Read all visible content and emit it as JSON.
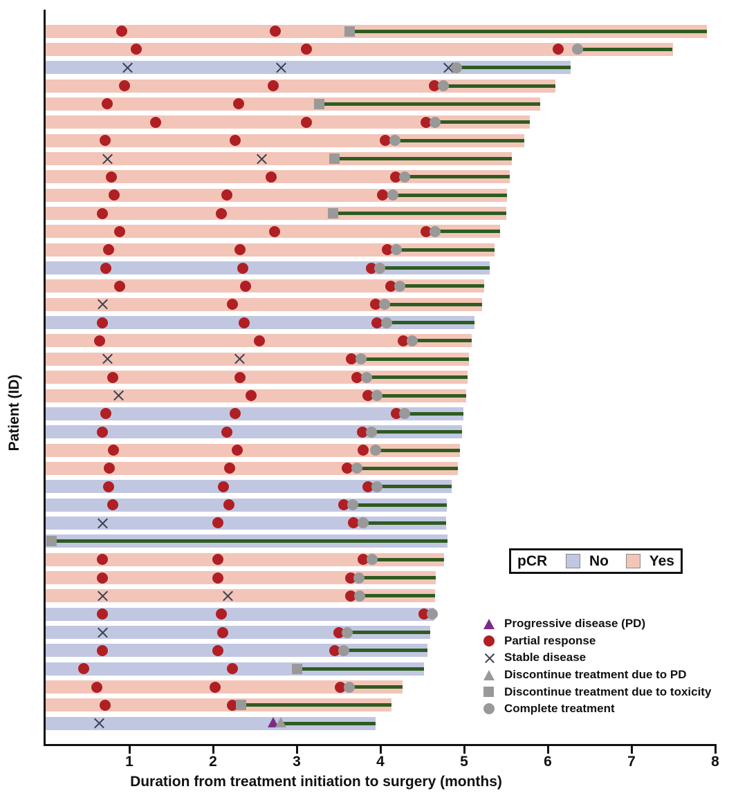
{
  "chart_data": {
    "type": "bar",
    "variant": "swimmer-plot",
    "xlabel": "Duration from treatment initiation to surgery (months)",
    "ylabel": "Patient (ID)",
    "xlim": [
      0,
      8
    ],
    "x_ticks": [
      1,
      2,
      3,
      4,
      5,
      6,
      7,
      8
    ],
    "grid": false,
    "colors": {
      "pcr_yes": "#f2c5b8",
      "pcr_no": "#c1c7e1",
      "treatment_line": "#2e5c20",
      "partial_response": "#b01f24",
      "gray_marker": "#999999",
      "progressive_disease": "#7d2b88",
      "stable_x": "#3c4152",
      "axis": "#111111"
    },
    "pcr_legend": {
      "title": "pCR",
      "no_label": "No",
      "yes_label": "Yes"
    },
    "marker_legend": [
      {
        "type": "pd",
        "label": "Progressive disease (PD)"
      },
      {
        "type": "pr",
        "label": "Partial response"
      },
      {
        "type": "sd",
        "label": "Stable disease"
      },
      {
        "type": "disc_pd",
        "label": "Discontinue treatment due to PD"
      },
      {
        "type": "tox",
        "label": "Discontinue treatment due to toxicity"
      },
      {
        "type": "comp",
        "label": "Complete treatment"
      }
    ],
    "patients": [
      {
        "pcr": "yes",
        "end": 7.91,
        "markers": [
          {
            "t": 0.92,
            "type": "pr"
          },
          {
            "t": 2.75,
            "type": "pr"
          },
          {
            "t": 3.64,
            "type": "tox"
          }
        ]
      },
      {
        "pcr": "yes",
        "end": 7.5,
        "markers": [
          {
            "t": 1.09,
            "type": "pr"
          },
          {
            "t": 3.12,
            "type": "pr"
          },
          {
            "t": 6.13,
            "type": "pr"
          },
          {
            "t": 6.36,
            "type": "comp"
          }
        ]
      },
      {
        "pcr": "no",
        "end": 6.28,
        "markers": [
          {
            "t": 0.99,
            "type": "sd"
          },
          {
            "t": 2.82,
            "type": "sd"
          },
          {
            "t": 4.82,
            "type": "sd"
          },
          {
            "t": 4.92,
            "type": "comp"
          }
        ]
      },
      {
        "pcr": "yes",
        "end": 6.1,
        "markers": [
          {
            "t": 0.95,
            "type": "pr"
          },
          {
            "t": 2.73,
            "type": "pr"
          },
          {
            "t": 4.65,
            "type": "pr"
          },
          {
            "t": 4.76,
            "type": "comp"
          }
        ]
      },
      {
        "pcr": "yes",
        "end": 5.92,
        "markers": [
          {
            "t": 0.74,
            "type": "pr"
          },
          {
            "t": 2.31,
            "type": "pr"
          },
          {
            "t": 3.28,
            "type": "tox"
          }
        ]
      },
      {
        "pcr": "yes",
        "end": 5.79,
        "markers": [
          {
            "t": 1.32,
            "type": "pr"
          },
          {
            "t": 3.12,
            "type": "pr"
          },
          {
            "t": 4.55,
            "type": "pr"
          },
          {
            "t": 4.66,
            "type": "comp"
          }
        ]
      },
      {
        "pcr": "yes",
        "end": 5.73,
        "markers": [
          {
            "t": 0.72,
            "type": "pr"
          },
          {
            "t": 2.27,
            "type": "pr"
          },
          {
            "t": 4.07,
            "type": "pr"
          },
          {
            "t": 4.18,
            "type": "comp"
          }
        ]
      },
      {
        "pcr": "yes",
        "end": 5.58,
        "markers": [
          {
            "t": 0.75,
            "type": "sd"
          },
          {
            "t": 2.59,
            "type": "sd"
          },
          {
            "t": 3.46,
            "type": "tox"
          }
        ]
      },
      {
        "pcr": "yes",
        "end": 5.55,
        "markers": [
          {
            "t": 0.79,
            "type": "pr"
          },
          {
            "t": 2.7,
            "type": "pr"
          },
          {
            "t": 4.19,
            "type": "pr"
          },
          {
            "t": 4.3,
            "type": "comp"
          }
        ]
      },
      {
        "pcr": "yes",
        "end": 5.52,
        "markers": [
          {
            "t": 0.83,
            "type": "pr"
          },
          {
            "t": 2.17,
            "type": "pr"
          },
          {
            "t": 4.03,
            "type": "pr"
          },
          {
            "t": 4.16,
            "type": "comp"
          }
        ]
      },
      {
        "pcr": "yes",
        "end": 5.51,
        "markers": [
          {
            "t": 0.69,
            "type": "pr"
          },
          {
            "t": 2.11,
            "type": "pr"
          },
          {
            "t": 3.44,
            "type": "tox"
          }
        ]
      },
      {
        "pcr": "yes",
        "end": 5.44,
        "markers": [
          {
            "t": 0.89,
            "type": "pr"
          },
          {
            "t": 2.74,
            "type": "pr"
          },
          {
            "t": 4.55,
            "type": "pr"
          },
          {
            "t": 4.66,
            "type": "comp"
          }
        ]
      },
      {
        "pcr": "yes",
        "end": 5.37,
        "markers": [
          {
            "t": 0.76,
            "type": "pr"
          },
          {
            "t": 2.33,
            "type": "pr"
          },
          {
            "t": 4.09,
            "type": "pr"
          },
          {
            "t": 4.2,
            "type": "comp"
          }
        ]
      },
      {
        "pcr": "no",
        "end": 5.31,
        "markers": [
          {
            "t": 0.73,
            "type": "pr"
          },
          {
            "t": 2.36,
            "type": "pr"
          },
          {
            "t": 3.9,
            "type": "pr"
          },
          {
            "t": 4.0,
            "type": "comp"
          }
        ]
      },
      {
        "pcr": "yes",
        "end": 5.25,
        "markers": [
          {
            "t": 0.89,
            "type": "pr"
          },
          {
            "t": 2.4,
            "type": "pr"
          },
          {
            "t": 4.13,
            "type": "pr"
          },
          {
            "t": 4.24,
            "type": "comp"
          }
        ]
      },
      {
        "pcr": "yes",
        "end": 5.22,
        "markers": [
          {
            "t": 0.69,
            "type": "sd"
          },
          {
            "t": 2.24,
            "type": "pr"
          },
          {
            "t": 3.95,
            "type": "pr"
          },
          {
            "t": 4.06,
            "type": "comp"
          }
        ]
      },
      {
        "pcr": "no",
        "end": 5.13,
        "markers": [
          {
            "t": 0.69,
            "type": "pr"
          },
          {
            "t": 2.38,
            "type": "pr"
          },
          {
            "t": 3.97,
            "type": "pr"
          },
          {
            "t": 4.08,
            "type": "comp"
          }
        ]
      },
      {
        "pcr": "yes",
        "end": 5.1,
        "markers": [
          {
            "t": 0.65,
            "type": "pr"
          },
          {
            "t": 2.56,
            "type": "pr"
          },
          {
            "t": 4.28,
            "type": "pr"
          },
          {
            "t": 4.39,
            "type": "comp"
          }
        ]
      },
      {
        "pcr": "yes",
        "end": 5.07,
        "markers": [
          {
            "t": 0.75,
            "type": "sd"
          },
          {
            "t": 2.33,
            "type": "sd"
          },
          {
            "t": 3.66,
            "type": "pr"
          },
          {
            "t": 3.78,
            "type": "comp"
          }
        ]
      },
      {
        "pcr": "yes",
        "end": 5.05,
        "markers": [
          {
            "t": 0.81,
            "type": "pr"
          },
          {
            "t": 2.33,
            "type": "pr"
          },
          {
            "t": 3.73,
            "type": "pr"
          },
          {
            "t": 3.84,
            "type": "comp"
          }
        ]
      },
      {
        "pcr": "yes",
        "end": 5.03,
        "markers": [
          {
            "t": 0.88,
            "type": "sd"
          },
          {
            "t": 2.46,
            "type": "pr"
          },
          {
            "t": 3.86,
            "type": "pr"
          },
          {
            "t": 3.97,
            "type": "comp"
          }
        ]
      },
      {
        "pcr": "no",
        "end": 5.0,
        "markers": [
          {
            "t": 0.73,
            "type": "pr"
          },
          {
            "t": 2.27,
            "type": "pr"
          },
          {
            "t": 4.2,
            "type": "pr"
          },
          {
            "t": 4.3,
            "type": "comp"
          }
        ]
      },
      {
        "pcr": "no",
        "end": 4.98,
        "markers": [
          {
            "t": 0.69,
            "type": "pr"
          },
          {
            "t": 2.17,
            "type": "pr"
          },
          {
            "t": 3.79,
            "type": "pr"
          },
          {
            "t": 3.9,
            "type": "comp"
          }
        ]
      },
      {
        "pcr": "yes",
        "end": 4.96,
        "markers": [
          {
            "t": 0.82,
            "type": "pr"
          },
          {
            "t": 2.3,
            "type": "pr"
          },
          {
            "t": 3.8,
            "type": "pr"
          },
          {
            "t": 3.95,
            "type": "comp"
          }
        ]
      },
      {
        "pcr": "yes",
        "end": 4.93,
        "markers": [
          {
            "t": 0.77,
            "type": "pr"
          },
          {
            "t": 2.21,
            "type": "pr"
          },
          {
            "t": 3.61,
            "type": "pr"
          },
          {
            "t": 3.73,
            "type": "comp"
          }
        ]
      },
      {
        "pcr": "no",
        "end": 4.86,
        "markers": [
          {
            "t": 0.76,
            "type": "pr"
          },
          {
            "t": 2.13,
            "type": "pr"
          },
          {
            "t": 3.86,
            "type": "pr"
          },
          {
            "t": 3.97,
            "type": "comp"
          }
        ]
      },
      {
        "pcr": "no",
        "end": 4.8,
        "markers": [
          {
            "t": 0.81,
            "type": "pr"
          },
          {
            "t": 2.2,
            "type": "pr"
          },
          {
            "t": 3.57,
            "type": "pr"
          },
          {
            "t": 3.68,
            "type": "comp"
          }
        ]
      },
      {
        "pcr": "no",
        "end": 4.79,
        "markers": [
          {
            "t": 0.69,
            "type": "sd"
          },
          {
            "t": 2.07,
            "type": "pr"
          },
          {
            "t": 3.69,
            "type": "pr"
          },
          {
            "t": 3.8,
            "type": "comp"
          }
        ]
      },
      {
        "pcr": "no",
        "end": 4.81,
        "markers": [
          {
            "t": 0.08,
            "type": "tox"
          }
        ]
      },
      {
        "pcr": "yes",
        "end": 4.77,
        "markers": [
          {
            "t": 0.69,
            "type": "pr"
          },
          {
            "t": 2.07,
            "type": "pr"
          },
          {
            "t": 3.8,
            "type": "pr"
          },
          {
            "t": 3.91,
            "type": "comp"
          }
        ]
      },
      {
        "pcr": "yes",
        "end": 4.67,
        "markers": [
          {
            "t": 0.69,
            "type": "pr"
          },
          {
            "t": 2.07,
            "type": "pr"
          },
          {
            "t": 3.65,
            "type": "pr"
          },
          {
            "t": 3.75,
            "type": "comp"
          }
        ]
      },
      {
        "pcr": "yes",
        "end": 4.66,
        "markers": [
          {
            "t": 0.69,
            "type": "sd"
          },
          {
            "t": 2.19,
            "type": "sd"
          },
          {
            "t": 3.65,
            "type": "pr"
          },
          {
            "t": 3.76,
            "type": "comp"
          }
        ]
      },
      {
        "pcr": "no",
        "end": 4.65,
        "markers": [
          {
            "t": 0.69,
            "type": "pr"
          },
          {
            "t": 2.11,
            "type": "pr"
          },
          {
            "t": 4.53,
            "type": "pr"
          },
          {
            "t": 4.63,
            "type": "comp"
          }
        ]
      },
      {
        "pcr": "no",
        "end": 4.6,
        "markers": [
          {
            "t": 0.69,
            "type": "sd"
          },
          {
            "t": 2.12,
            "type": "pr"
          },
          {
            "t": 3.51,
            "type": "pr"
          },
          {
            "t": 3.61,
            "type": "comp"
          }
        ]
      },
      {
        "pcr": "no",
        "end": 4.57,
        "markers": [
          {
            "t": 0.69,
            "type": "pr"
          },
          {
            "t": 2.07,
            "type": "pr"
          },
          {
            "t": 3.46,
            "type": "pr"
          },
          {
            "t": 3.57,
            "type": "comp"
          }
        ]
      },
      {
        "pcr": "no",
        "end": 4.53,
        "markers": [
          {
            "t": 0.46,
            "type": "pr"
          },
          {
            "t": 2.24,
            "type": "pr"
          },
          {
            "t": 3.01,
            "type": "tox"
          }
        ]
      },
      {
        "pcr": "yes",
        "end": 4.27,
        "markers": [
          {
            "t": 0.62,
            "type": "pr"
          },
          {
            "t": 2.03,
            "type": "pr"
          },
          {
            "t": 3.53,
            "type": "pr"
          },
          {
            "t": 3.64,
            "type": "comp"
          }
        ]
      },
      {
        "pcr": "yes",
        "end": 4.14,
        "markers": [
          {
            "t": 0.72,
            "type": "pr"
          },
          {
            "t": 2.24,
            "type": "pr"
          },
          {
            "t": 2.34,
            "type": "tox"
          }
        ]
      },
      {
        "pcr": "no",
        "end": 3.95,
        "markers": [
          {
            "t": 0.65,
            "type": "sd"
          },
          {
            "t": 2.73,
            "type": "pd"
          },
          {
            "t": 2.82,
            "type": "disc_pd"
          }
        ]
      }
    ]
  }
}
